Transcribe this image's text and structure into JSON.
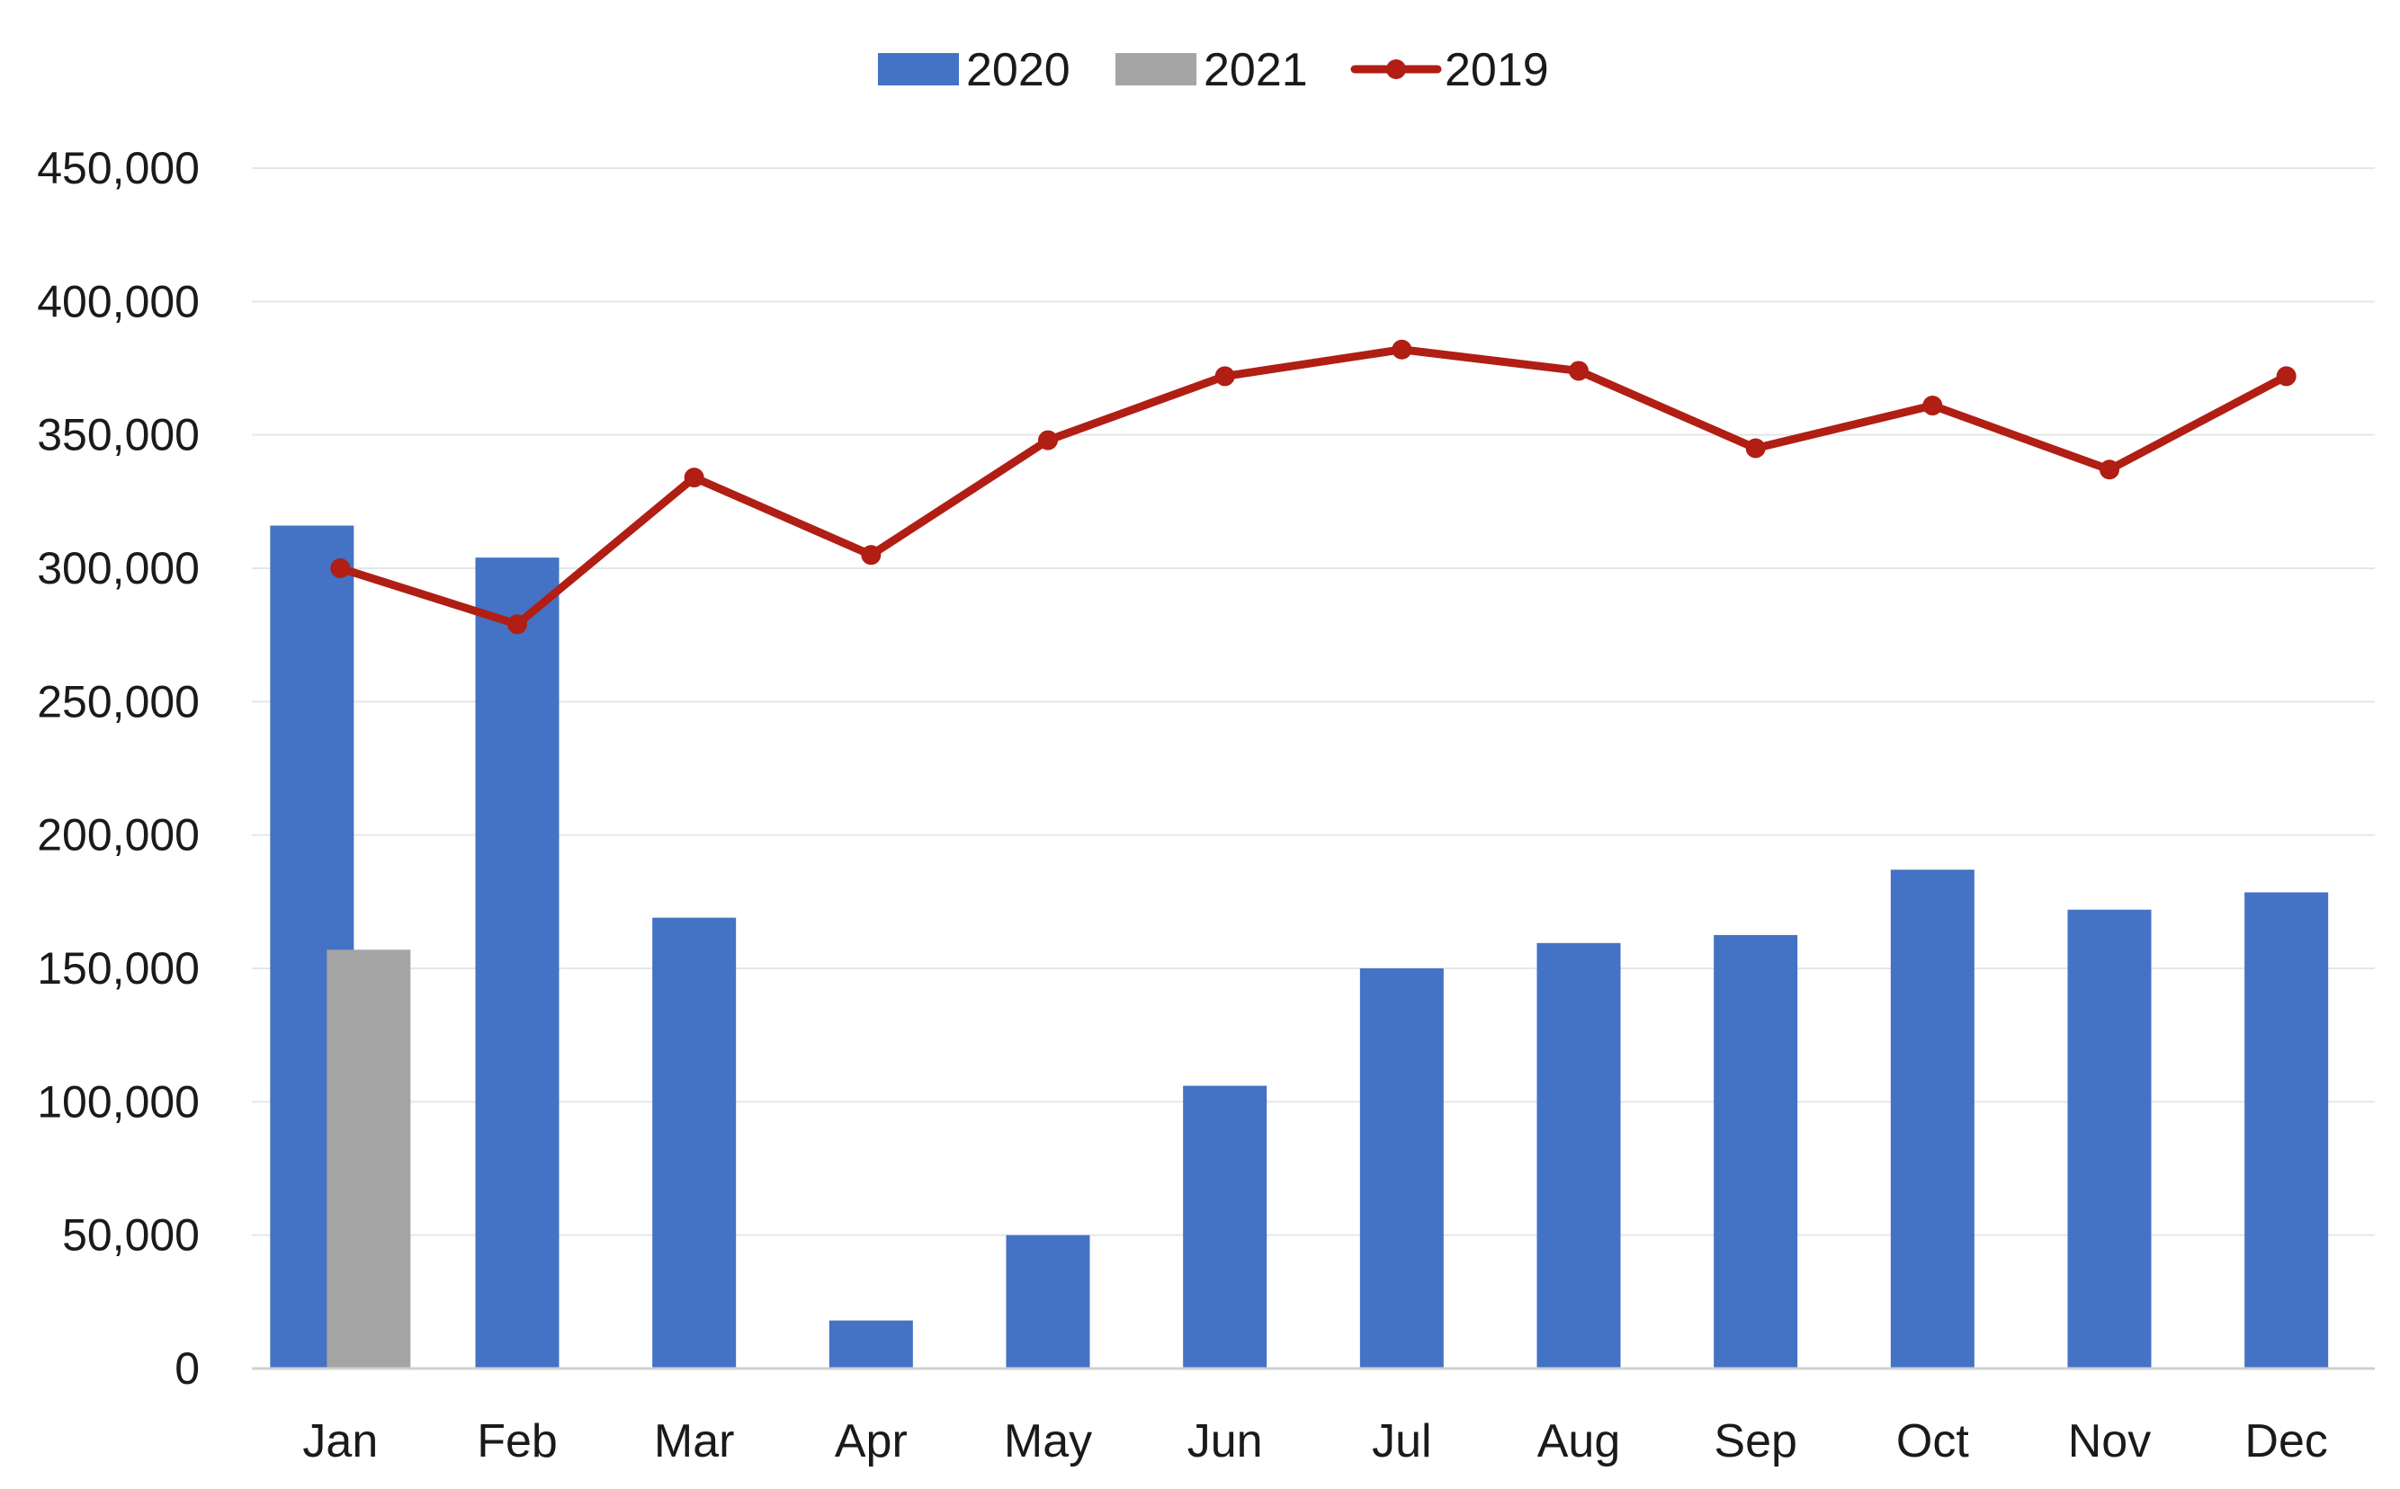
{
  "chart_data": {
    "type": "bar",
    "title": "",
    "xlabel": "",
    "ylabel": "",
    "categories": [
      "Jan",
      "Feb",
      "Mar",
      "Apr",
      "May",
      "Jun",
      "Jul",
      "Aug",
      "Sep",
      "Oct",
      "Nov",
      "Dec"
    ],
    "ylim": [
      0,
      450000
    ],
    "yticks": [
      0,
      50000,
      100000,
      150000,
      200000,
      250000,
      300000,
      350000,
      400000,
      450000
    ],
    "ytick_labels": [
      "0",
      "50,000",
      "100,000",
      "150,000",
      "200,000",
      "250,000",
      "300,000",
      "350,000",
      "400,000",
      "450,000"
    ],
    "grid": true,
    "legend_position": "top-center",
    "series": [
      {
        "name": "2020",
        "kind": "bar",
        "color": "#4472C4",
        "values": [
          316000,
          304000,
          169000,
          18000,
          50000,
          106000,
          150000,
          159500,
          162500,
          187000,
          172000,
          178500
        ]
      },
      {
        "name": "2021",
        "kind": "bar",
        "color": "#A5A5A5",
        "values": [
          157000,
          null,
          null,
          null,
          null,
          null,
          null,
          null,
          null,
          null,
          null,
          null
        ]
      },
      {
        "name": "2019",
        "kind": "line",
        "color": "#B01E14",
        "values": [
          300000,
          279000,
          334000,
          305000,
          348000,
          372000,
          382000,
          374000,
          345000,
          361000,
          337000,
          372000
        ]
      }
    ]
  }
}
